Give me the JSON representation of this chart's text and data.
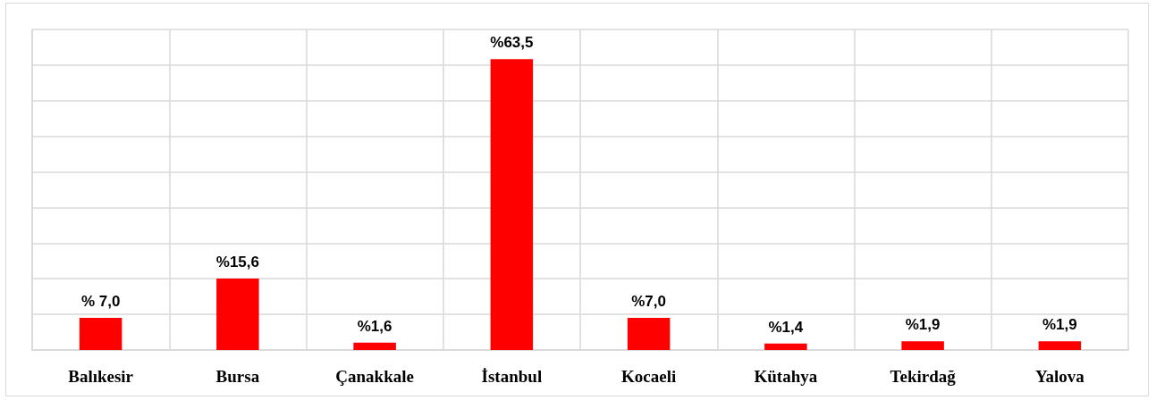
{
  "chart_data": {
    "type": "bar",
    "categories": [
      "Balıkesir",
      "Bursa",
      "Çanakkale",
      "İstanbul",
      "Kocaeli",
      "Kütahya",
      "Tekirdağ",
      "Yalova"
    ],
    "values": [
      7.0,
      15.6,
      1.6,
      63.5,
      7.0,
      1.4,
      1.9,
      1.9
    ],
    "value_labels": [
      "% 7,0",
      "%15,6",
      "%1,6",
      "%63,5",
      "%7,0",
      "%1,4",
      "%1,9",
      "%1,9"
    ],
    "color": "#ff0000",
    "ylim": [
      0,
      70
    ],
    "yticks": [
      {
        "value": 0,
        "label": null
      },
      {
        "value": 7.78,
        "label": null
      },
      {
        "value": 15.56,
        "label": null
      },
      {
        "value": 23.33,
        "label": null
      },
      {
        "value": 31.11,
        "label": null
      },
      {
        "value": 38.89,
        "label": null
      },
      {
        "value": 46.67,
        "label": null
      },
      {
        "value": 54.44,
        "label": null
      },
      {
        "value": 62.22,
        "label": null
      },
      {
        "value": 70,
        "label": null
      }
    ],
    "tick_labels": "x",
    "grid": true
  }
}
